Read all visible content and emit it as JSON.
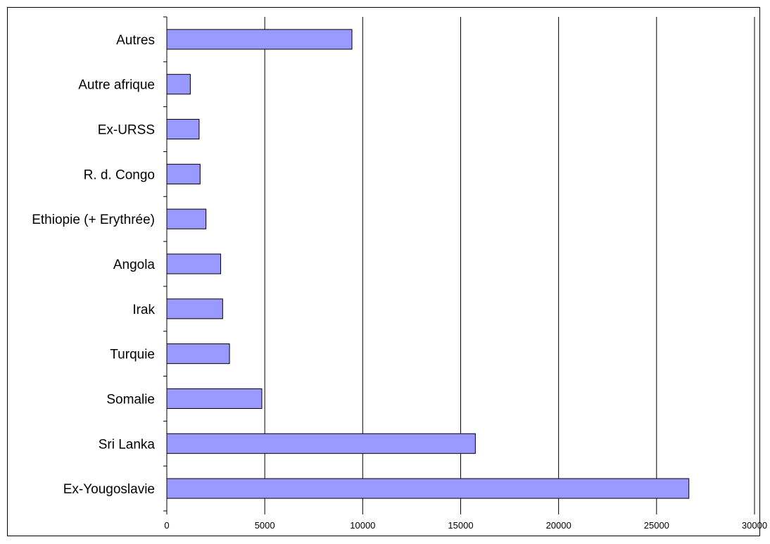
{
  "chart_data": {
    "type": "bar",
    "orientation": "horizontal",
    "categories": [
      "Autres",
      "Autre afrique",
      "Ex-URSS",
      "R. d. Congo",
      "Ethiopie (+ Erythrée)",
      "Angola",
      "Irak",
      "Turquie",
      "Somalie",
      "Sri Lanka",
      "Ex-Yougoslavie"
    ],
    "values": [
      9450,
      1200,
      1650,
      1700,
      2000,
      2750,
      2850,
      3200,
      4850,
      15750,
      26650
    ],
    "title": "",
    "xlabel": "",
    "ylabel": "",
    "xlim": [
      0,
      30000
    ],
    "xticks": [
      "0",
      "5000",
      "10000",
      "15000",
      "20000",
      "25000",
      "30000"
    ],
    "grid": "vertical",
    "legend": "none",
    "bar_color": "#9999ff",
    "bar_outline": "#000000"
  }
}
